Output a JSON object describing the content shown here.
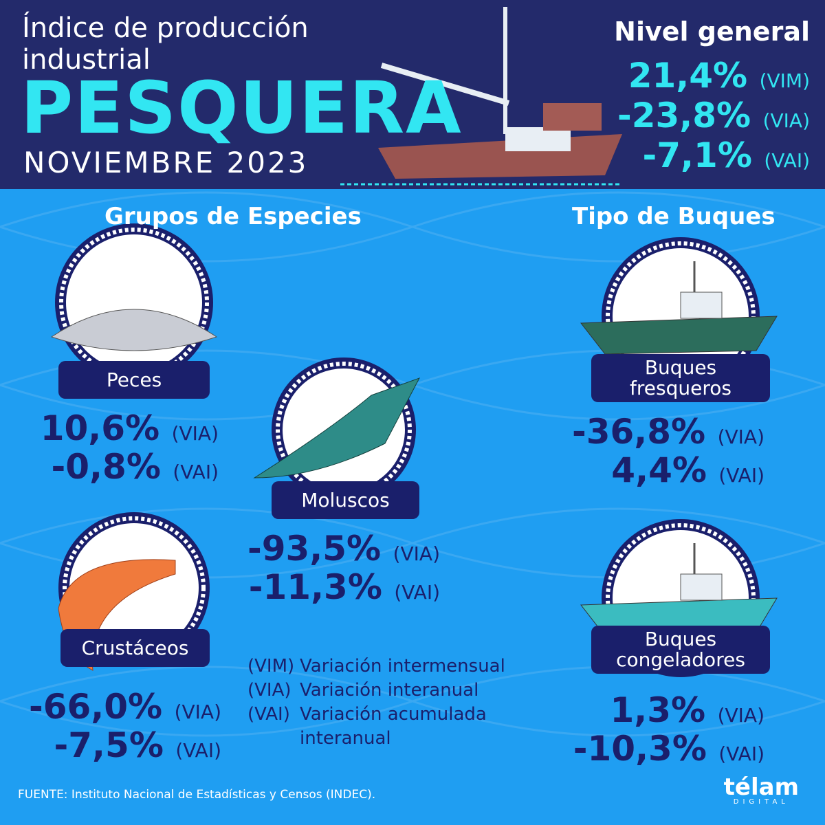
{
  "header": {
    "title_lines": [
      "Índice de producción",
      "industrial"
    ],
    "main": "PESQUERA",
    "period": "NOVIEMBRE 2023"
  },
  "general": {
    "title": "Nivel general",
    "items": [
      {
        "value": "21,4%",
        "tag": "(VIM)"
      },
      {
        "value": "-23,8%",
        "tag": "(VIA)"
      },
      {
        "value": "-7,1%",
        "tag": "(VAI)"
      }
    ]
  },
  "sections": [
    "Grupos de Especies",
    "Tipo de Buques"
  ],
  "groups": [
    {
      "label": "Peces",
      "items": [
        {
          "value": "10,6%",
          "tag": "(VIA)"
        },
        {
          "value": "-0,8%",
          "tag": "(VAI)"
        }
      ]
    },
    {
      "label": "Moluscos",
      "items": [
        {
          "value": "-93,5%",
          "tag": "(VIA)"
        },
        {
          "value": "-11,3%",
          "tag": "(VAI)"
        }
      ]
    },
    {
      "label": "Crustáceos",
      "items": [
        {
          "value": "-66,0%",
          "tag": "(VIA)"
        },
        {
          "value": "-7,5%",
          "tag": "(VAI)"
        }
      ]
    },
    {
      "label": "Buques fresqueros",
      "items": [
        {
          "value": "-36,8%",
          "tag": "(VIA)"
        },
        {
          "value": "4,4%",
          "tag": "(VAI)"
        }
      ]
    },
    {
      "label": "Buques congeladores",
      "items": [
        {
          "value": "1,3%",
          "tag": "(VIA)"
        },
        {
          "value": "-10,3%",
          "tag": "(VAI)"
        }
      ]
    }
  ],
  "legend": [
    {
      "abbr": "(VIM)",
      "text": [
        "Variación intermensual"
      ]
    },
    {
      "abbr": "(VIA)",
      "text": [
        "Variación interanual"
      ]
    },
    {
      "abbr": "(VAI)",
      "text": [
        "Variación acumulada",
        "interanual"
      ]
    }
  ],
  "source": "FUENTE: Instituto Nacional de Estadísticas y Censos (INDEC).",
  "logo": {
    "name": "télam",
    "sub": "DIGITAL"
  }
}
